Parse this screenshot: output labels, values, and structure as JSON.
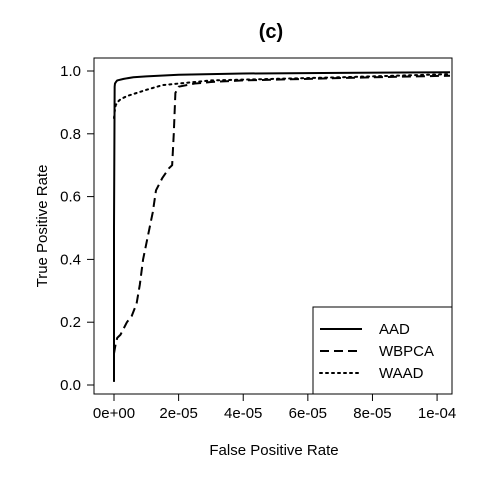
{
  "chart_data": {
    "type": "line",
    "title": "(c)",
    "xlabel": "False Positive Rate",
    "ylabel": "True Positive Rate",
    "xlim": [
      0,
      0.000104
    ],
    "ylim": [
      0,
      1
    ],
    "x_ticks": [
      0,
      2e-05,
      4e-05,
      6e-05,
      8e-05,
      0.0001
    ],
    "x_tick_labels": [
      "0e+00",
      "2e-05",
      "4e-05",
      "6e-05",
      "8e-05",
      "1e-04"
    ],
    "y_ticks": [
      0.0,
      0.2,
      0.4,
      0.6,
      0.8,
      1.0
    ],
    "y_tick_labels": [
      "0.0",
      "0.2",
      "0.4",
      "0.6",
      "0.8",
      "1.0"
    ],
    "grid": false,
    "legend_position": "bottom-right",
    "series": [
      {
        "name": "AAD",
        "line_style": "solid",
        "color": "#000000",
        "x": [
          0,
          0,
          2e-07,
          3e-07,
          6e-07,
          1e-06,
          3e-06,
          6e-06,
          1e-05,
          2e-05,
          4e-05,
          7e-05,
          0.000104
        ],
        "y": [
          0.01,
          0.5,
          0.95,
          0.96,
          0.965,
          0.97,
          0.975,
          0.98,
          0.983,
          0.988,
          0.992,
          0.994,
          0.996
        ]
      },
      {
        "name": "WBPCA",
        "line_style": "dashed",
        "color": "#000000",
        "x": [
          0,
          5e-07,
          1e-06,
          2e-06,
          4e-06,
          5.5e-06,
          7e-06,
          8e-06,
          9e-06,
          1e-05,
          1.2e-05,
          1.3e-05,
          1.5e-05,
          1.7e-05,
          1.8e-05,
          1.85e-05,
          1.9e-05,
          2e-05,
          2.5e-05,
          3e-05,
          4e-05,
          6e-05,
          8e-05,
          0.000104
        ],
        "y": [
          0.1,
          0.13,
          0.15,
          0.16,
          0.2,
          0.22,
          0.26,
          0.32,
          0.4,
          0.45,
          0.55,
          0.62,
          0.66,
          0.69,
          0.7,
          0.8,
          0.93,
          0.95,
          0.96,
          0.965,
          0.97,
          0.975,
          0.98,
          0.985
        ]
      },
      {
        "name": "WAAD",
        "line_style": "dotted",
        "color": "#000000",
        "x": [
          0,
          2e-07,
          5e-07,
          1e-06,
          2e-06,
          4e-06,
          7e-06,
          1e-05,
          1.5e-05,
          2e-05,
          3e-05,
          5e-05,
          7e-05,
          0.000104
        ],
        "y": [
          0.85,
          0.87,
          0.89,
          0.9,
          0.91,
          0.92,
          0.93,
          0.94,
          0.955,
          0.96,
          0.97,
          0.975,
          0.98,
          0.99
        ]
      }
    ]
  }
}
